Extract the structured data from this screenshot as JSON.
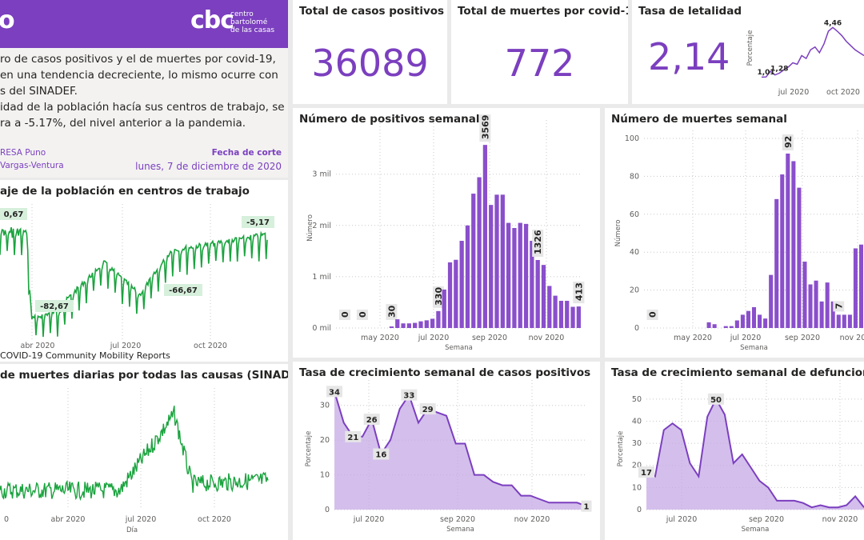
{
  "colors": {
    "purple": "#7b3fbf",
    "bar": "#8a4fcb",
    "area": "#c6aae6",
    "green": "#1aa33e",
    "greenlbl": "#d6f0dc",
    "grid": "#c8c8c8"
  },
  "header": {
    "title_fragment": "o",
    "logo_text": "cbc",
    "logo_line1": "centro",
    "logo_line2": "bartolomé",
    "logo_line3": "de las casas",
    "logo_icon": "cbc-logo"
  },
  "summary": {
    "line1": "ro de casos positivos y el de muertes por covid-19,",
    "line2": "en una tendencia decreciente, lo mismo ocurre con",
    "line3": "s del SINADEF.",
    "line4": "idad de la población hacía sus centros de trabajo, se",
    "line5": "ra a -5.17%, del nivel anterior a la pandemia.",
    "source1": "RESA Puno",
    "source2": "Vargas-Ventura",
    "cutoff_label": "Fecha de corte",
    "cutoff_date": "lunes, 7 de diciembre de 2020"
  },
  "kpis": [
    {
      "title": "Total de casos positivos",
      "value": "36089"
    },
    {
      "title": "Total de muertes por covid-19",
      "value": "772"
    },
    {
      "title": "Tasa de letalidad",
      "value": "2,14"
    }
  ],
  "charts": {
    "mobility": {
      "title": "aje de la población en centros de trabajo",
      "source": "COVID-19 Community Mobility Reports"
    },
    "sinadef": {
      "title": "de muertes diarias por todas las causas (SINADEF)"
    },
    "positivos": {
      "title": "Número de positivos semanal"
    },
    "muertes": {
      "title": "Número de muertes semanal"
    },
    "crec_casos": {
      "title": "Tasa de crecimiento semanal de casos positivos"
    },
    "crec_def": {
      "title": "Tasa de crecimiento semanal de defunciones"
    }
  },
  "chart_data": [
    {
      "id": "letalidad",
      "type": "line",
      "ylabel": "Porcentaje",
      "xticks": [
        "jul 2020",
        "oct 2020"
      ],
      "values": [
        1.0,
        1.01,
        1.4,
        1.15,
        1.28,
        1.5,
        1.7,
        2.0,
        1.9,
        2.5,
        2.3,
        2.9,
        3.1,
        2.7,
        3.3,
        4.2,
        4.46,
        4.2,
        3.9,
        3.5,
        3.2,
        2.9,
        2.7,
        2.5
      ],
      "labels": {
        "1": "1,01",
        "4": "1,28",
        "16": "4,46"
      }
    },
    {
      "id": "positivos",
      "type": "bar",
      "xlabel": "Semana",
      "ylabel": "Número",
      "yticks": [
        "0 mil",
        "1 mil",
        "2 mil",
        "3 mil"
      ],
      "ymax": 3900,
      "xticks": [
        "may 2020",
        "jul 2020",
        "sep 2020",
        "nov 2020"
      ],
      "values": [
        0,
        0,
        0,
        0,
        0,
        0,
        0,
        0,
        0,
        30,
        170,
        90,
        90,
        100,
        130,
        150,
        180,
        330,
        750,
        1280,
        1330,
        1700,
        2000,
        2620,
        2940,
        3570,
        2400,
        2600,
        2600,
        2050,
        1950,
        2050,
        2030,
        1700,
        1326,
        1230,
        820,
        630,
        530,
        530,
        413,
        420
      ],
      "labels": {
        "1": "0",
        "4": "0",
        "9": "30",
        "17": "330",
        "25": "3569",
        "34": "1326",
        "41": "413"
      }
    },
    {
      "id": "muertes",
      "type": "bar",
      "xlabel": "Semana",
      "ylabel": "Número",
      "yticks": [
        "0",
        "20",
        "40",
        "60",
        "80",
        "100"
      ],
      "ymax": 100,
      "xticks": [
        "may 2020",
        "jul 2020",
        "sep 2020",
        "nov 2020"
      ],
      "values": [
        0,
        0,
        0,
        0,
        0,
        0,
        0,
        0,
        0,
        0,
        0,
        3,
        2,
        0,
        1,
        1,
        4,
        7,
        9,
        11,
        7,
        5,
        28,
        68,
        81,
        92,
        88,
        74,
        35,
        23,
        25,
        14,
        24,
        14,
        7,
        7,
        7,
        42,
        44
      ],
      "labels": {
        "1": "0",
        "25": "92",
        "34": "7"
      }
    },
    {
      "id": "crec_casos",
      "type": "area",
      "xlabel": "Semana",
      "ylabel": "Porcentaje",
      "yticks": [
        "0",
        "10",
        "20",
        "30"
      ],
      "ymax": 35,
      "xticks": [
        "jul 2020",
        "sep 2020",
        "nov 2020"
      ],
      "values": [
        34,
        25,
        21,
        21,
        26,
        16,
        20,
        29,
        33,
        25,
        29,
        28,
        27,
        19,
        19,
        10,
        10,
        8,
        7,
        7,
        4,
        4,
        3,
        2,
        2,
        2,
        2,
        1
      ],
      "labels": {
        "0": "34",
        "2": "21",
        "4": "26",
        "5": "16",
        "8": "33",
        "10": "29",
        "27": "1"
      }
    },
    {
      "id": "crec_def",
      "type": "area",
      "xlabel": "Semana",
      "ylabel": "Porcentaje",
      "yticks": [
        "0",
        "10",
        "20",
        "30",
        "40",
        "50"
      ],
      "ymax": 55,
      "xticks": [
        "jul 2020",
        "sep 2020",
        "nov 2020"
      ],
      "values": [
        17,
        15,
        36,
        39,
        36,
        21,
        15,
        42,
        50,
        43,
        21,
        25,
        19,
        13,
        10,
        4,
        4,
        4,
        3,
        1,
        2,
        1,
        1,
        2,
        6,
        1
      ],
      "labels": {
        "0": "17",
        "8": "50"
      }
    },
    {
      "id": "mobility",
      "type": "line",
      "xticks": [
        "abr 2020",
        "jul 2020",
        "oct 2020"
      ],
      "labels_text": [
        "0,67",
        "-82,67",
        "-66,67",
        "-5,17"
      ]
    },
    {
      "id": "sinadef",
      "type": "line",
      "xlabel": "Día",
      "xticks": [
        "0",
        "abr 2020",
        "jul 2020",
        "oct 2020"
      ]
    }
  ]
}
